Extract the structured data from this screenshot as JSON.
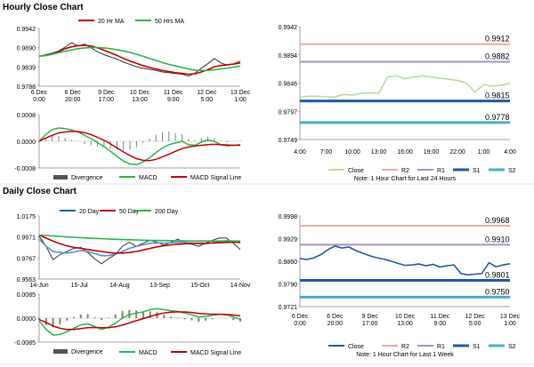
{
  "titles": {
    "hourly": "Hourly Close Chart",
    "daily": "Daily Close Chart"
  },
  "colors": {
    "ma20": "#c00000",
    "ma50": "#2db34a",
    "price": "#333333",
    "hist": "#808080",
    "close_light": "#b7dd9a",
    "r2": "#f2a6a6",
    "r1": "#a892c0",
    "s1": "#1e5aa0",
    "s2": "#4bacc6",
    "close_daily": "#1f5aa6",
    "green": "#2db34a",
    "purple": "#8064a2",
    "lightblue": "#92cddc",
    "axis": "#888888"
  },
  "chart_data": [
    {
      "id": "hourly_price",
      "type": "line",
      "legend": [
        "20 Hr MA",
        "50 Hrs MA"
      ],
      "ylim": [
        0.9788,
        0.9942
      ],
      "y_ticks": [
        "0.9942",
        "0.9890",
        "0.9839",
        "0.9788"
      ],
      "x_ticks": [
        "6 Dec\n0:00",
        "6 Dec\n20:00",
        "9 Dec\n17:00",
        "10 Dec\n13:00",
        "11 Dec\n9:00",
        "12 Dec\n5:00",
        "13 Dec\n1:00"
      ],
      "series": [
        {
          "name": "Price",
          "values": [
            0.9868,
            0.9872,
            0.9876,
            0.9882,
            0.9892,
            0.9904,
            0.9895,
            0.99,
            0.989,
            0.988,
            0.9872,
            0.9866,
            0.986,
            0.9852,
            0.9846,
            0.984,
            0.9836,
            0.9833,
            0.983,
            0.9826,
            0.9824,
            0.9822,
            0.982,
            0.9815,
            0.9822,
            0.9836,
            0.9848,
            0.9862,
            0.985,
            0.9844,
            0.9848,
            0.9855
          ]
        },
        {
          "name": "20 Hr MA",
          "values": [
            0.9868,
            0.987,
            0.9873,
            0.988,
            0.9888,
            0.9893,
            0.9896,
            0.9897,
            0.9895,
            0.989,
            0.9884,
            0.9877,
            0.987,
            0.9862,
            0.9855,
            0.9849,
            0.9843,
            0.9838,
            0.9834,
            0.983,
            0.9827,
            0.9824,
            0.9822,
            0.982,
            0.9821,
            0.9826,
            0.9832,
            0.984,
            0.9843,
            0.9845,
            0.9847,
            0.985
          ]
        },
        {
          "name": "50 Hrs MA",
          "values": [
            0.9868,
            0.987,
            0.9873,
            0.9877,
            0.9881,
            0.9885,
            0.9888,
            0.989,
            0.9891,
            0.9891,
            0.989,
            0.9888,
            0.9885,
            0.9882,
            0.9878,
            0.9873,
            0.9868,
            0.9862,
            0.9857,
            0.9851,
            0.9846,
            0.9842,
            0.9838,
            0.9834,
            0.9831,
            0.983,
            0.983,
            0.9832,
            0.9834,
            0.9836,
            0.9839,
            0.9842
          ]
        }
      ]
    },
    {
      "id": "hourly_macd",
      "type": "line",
      "legend": [
        "Divergence",
        "MACD",
        "MACD Signal Line"
      ],
      "ylim": [
        -0.0008,
        0.0008
      ],
      "y_ticks": [
        "0.0008",
        "0.0000",
        "-0.0008"
      ],
      "series": [
        {
          "name": "MACD",
          "values": [
            0.0,
            0.0002,
            0.00035,
            0.0004,
            0.00038,
            0.00034,
            0.00028,
            0.00018,
            8e-05,
            -4e-05,
            -0.00016,
            -0.0003,
            -0.00045,
            -0.0006,
            -0.00068,
            -0.0007,
            -0.00062,
            -0.0005,
            -0.00034,
            -0.0002,
            -0.0001,
            -5e-05,
            0.0,
            -0.0001,
            -0.00012,
            -2e-05,
            4e-05,
            0.0,
            -0.0001,
            -0.00014,
            -0.00012,
            -0.0001
          ]
        },
        {
          "name": "MACD Signal Line",
          "values": [
            0.0,
            0.0001,
            0.00018,
            0.00025,
            0.00028,
            0.0003,
            0.00029,
            0.00026,
            0.0002,
            0.00012,
            3e-05,
            -8e-05,
            -0.0002,
            -0.00032,
            -0.00043,
            -0.00052,
            -0.00057,
            -0.00058,
            -0.00054,
            -0.00047,
            -0.00039,
            -0.0003,
            -0.00022,
            -0.00017,
            -0.00014,
            -0.00012,
            -0.0001,
            -9e-05,
            -0.0001,
            -0.00011,
            -0.00012,
            -0.00012
          ]
        }
      ]
    },
    {
      "id": "hourly_levels",
      "type": "line",
      "ylim": [
        0.9749,
        0.9942
      ],
      "y_ticks": [
        "0.9942",
        "0.9894",
        "0.9846",
        "0.9797",
        "0.9749"
      ],
      "x_ticks": [
        "4:00",
        "7:00",
        "10:00",
        "13:00",
        "16:00",
        "19:00",
        "22:00",
        "1:00",
        "4:00"
      ],
      "levels": [
        {
          "name": "R2",
          "value": 0.9912,
          "label": "0.9912"
        },
        {
          "name": "R1",
          "value": 0.9882,
          "label": "0.9882"
        },
        {
          "name": "S1",
          "value": 0.9815,
          "label": "0.9815"
        },
        {
          "name": "S2",
          "value": 0.9778,
          "label": "0.9778"
        }
      ],
      "legend": [
        "Close",
        "R2",
        "R1",
        "S1",
        "S2"
      ],
      "note": "Note: 1 Hour Chart for Last 24 Hours",
      "series": [
        {
          "name": "Close",
          "values": [
            0.9822,
            0.9823,
            0.9823,
            0.9822,
            0.9822,
            0.9826,
            0.9825,
            0.9828,
            0.9829,
            0.9828,
            0.9856,
            0.9858,
            0.9853,
            0.9856,
            0.9858,
            0.9856,
            0.9854,
            0.9852,
            0.985,
            0.9846,
            0.983,
            0.9843,
            0.984,
            0.9842,
            0.9845
          ]
        }
      ]
    },
    {
      "id": "daily_price",
      "type": "line",
      "legend": [
        "20 Day",
        "50 Day",
        "200 Day"
      ],
      "ylim": [
        0.9563,
        1.0175
      ],
      "y_ticks": [
        "1.0175",
        "0.9971",
        "0.9767",
        "0.9563"
      ],
      "x_ticks": [
        "14-Jun",
        "15-Jul",
        "14-Aug",
        "13-Sep",
        "15-Oct",
        "14-Nov"
      ],
      "series": [
        {
          "name": "Price",
          "values": [
            0.998,
            0.988,
            0.975,
            0.98,
            0.983,
            0.986,
            0.987,
            0.982,
            0.976,
            0.971,
            0.976,
            0.98,
            0.988,
            0.992,
            0.988,
            0.991,
            0.994,
            0.992,
            0.989,
            0.992,
            0.995,
            0.991,
            0.99,
            0.988,
            0.991,
            0.994,
            0.996,
            0.996,
            0.991,
            0.985
          ]
        },
        {
          "name": "20 Day",
          "values": [
            0.995,
            0.988,
            0.983,
            0.982,
            0.9815,
            0.9825,
            0.984,
            0.983,
            0.981,
            0.979,
            0.979,
            0.9805,
            0.983,
            0.986,
            0.988,
            0.9895,
            0.991,
            0.9915,
            0.991,
            0.9915,
            0.992,
            0.9918,
            0.991,
            0.9905,
            0.9905,
            0.9915,
            0.9925,
            0.9935,
            0.993,
            0.9915
          ]
        },
        {
          "name": "50 Day",
          "values": [
            0.999,
            0.996,
            0.993,
            0.9905,
            0.9885,
            0.987,
            0.986,
            0.985,
            0.984,
            0.983,
            0.982,
            0.9815,
            0.9815,
            0.982,
            0.983,
            0.9845,
            0.986,
            0.9875,
            0.9885,
            0.9895,
            0.99,
            0.9905,
            0.991,
            0.991,
            0.991,
            0.9912,
            0.9915,
            0.9918,
            0.992,
            0.992
          ]
        },
        {
          "name": "200 Day",
          "values": [
            0.999,
            0.9985,
            0.998,
            0.9976,
            0.9972,
            0.9968,
            0.9964,
            0.996,
            0.9957,
            0.9954,
            0.9951,
            0.9948,
            0.9946,
            0.9944,
            0.9942,
            0.994,
            0.9938,
            0.9937,
            0.9936,
            0.9935,
            0.9934,
            0.9933,
            0.9932,
            0.9932,
            0.9932,
            0.9932,
            0.9932,
            0.9932,
            0.9932,
            0.9932
          ]
        }
      ]
    },
    {
      "id": "daily_macd",
      "type": "line",
      "legend": [
        "Divergence",
        "MACD",
        "MACD Signal Line"
      ],
      "ylim": [
        -0.0085,
        0.0085
      ],
      "y_ticks": [
        "0.0085",
        "0.0000",
        "-0.0085"
      ],
      "series": [
        {
          "name": "MACD",
          "values": [
            -0.001,
            -0.004,
            -0.006,
            -0.0058,
            -0.0048,
            -0.0036,
            -0.0024,
            -0.002,
            -0.003,
            -0.004,
            -0.0032,
            -0.0018,
            0.0,
            0.0012,
            0.0018,
            0.0022,
            0.003,
            0.0034,
            0.003,
            0.0026,
            0.0024,
            0.0018,
            0.0012,
            0.0004,
            0.0006,
            0.001,
            0.0014,
            0.0012,
            0.0004,
            -0.0004
          ]
        },
        {
          "name": "MACD Signal Line",
          "values": [
            -0.0005,
            -0.0015,
            -0.0028,
            -0.0036,
            -0.004,
            -0.004,
            -0.0037,
            -0.0034,
            -0.0033,
            -0.0034,
            -0.0034,
            -0.0031,
            -0.0025,
            -0.0017,
            -0.0009,
            -0.0002,
            0.0006,
            0.0013,
            0.0018,
            0.0021,
            0.0022,
            0.0022,
            0.002,
            0.0017,
            0.0015,
            0.0014,
            0.0014,
            0.0013,
            0.0011,
            0.0008
          ]
        }
      ]
    },
    {
      "id": "daily_levels",
      "type": "line",
      "ylim": [
        0.9721,
        0.9998
      ],
      "y_ticks": [
        "0.9998",
        "0.9929",
        "0.9860",
        "0.9790",
        "0.9721"
      ],
      "x_ticks": [
        "6 Dec\n0:00",
        "6 Dec\n20:00",
        "9 Dec\n17:00",
        "10 Dec\n13:00",
        "11 Dec\n9:00",
        "12 Dec\n5:00",
        "13 Dec\n1:00"
      ],
      "levels": [
        {
          "name": "R2",
          "value": 0.9968,
          "label": "0.9968"
        },
        {
          "name": "R1",
          "value": 0.991,
          "label": "0.9910"
        },
        {
          "name": "S1",
          "value": 0.9801,
          "label": "0.9801"
        },
        {
          "name": "S2",
          "value": 0.975,
          "label": "0.9750"
        }
      ],
      "legend": [
        "Close",
        "R2",
        "R1",
        "S1",
        "S2"
      ],
      "note": "Note: 1 Hour Chart for Last 1 Week",
      "series": [
        {
          "name": "Close",
          "values": [
            0.9868,
            0.9865,
            0.987,
            0.988,
            0.9895,
            0.9906,
            0.99,
            0.9903,
            0.9892,
            0.9884,
            0.9876,
            0.987,
            0.9866,
            0.986,
            0.9853,
            0.9847,
            0.9848,
            0.9851,
            0.9846,
            0.985,
            0.9842,
            0.9846,
            0.9848,
            0.9822,
            0.9818,
            0.982,
            0.9822,
            0.9855,
            0.9843,
            0.9848,
            0.9852
          ]
        }
      ]
    }
  ]
}
